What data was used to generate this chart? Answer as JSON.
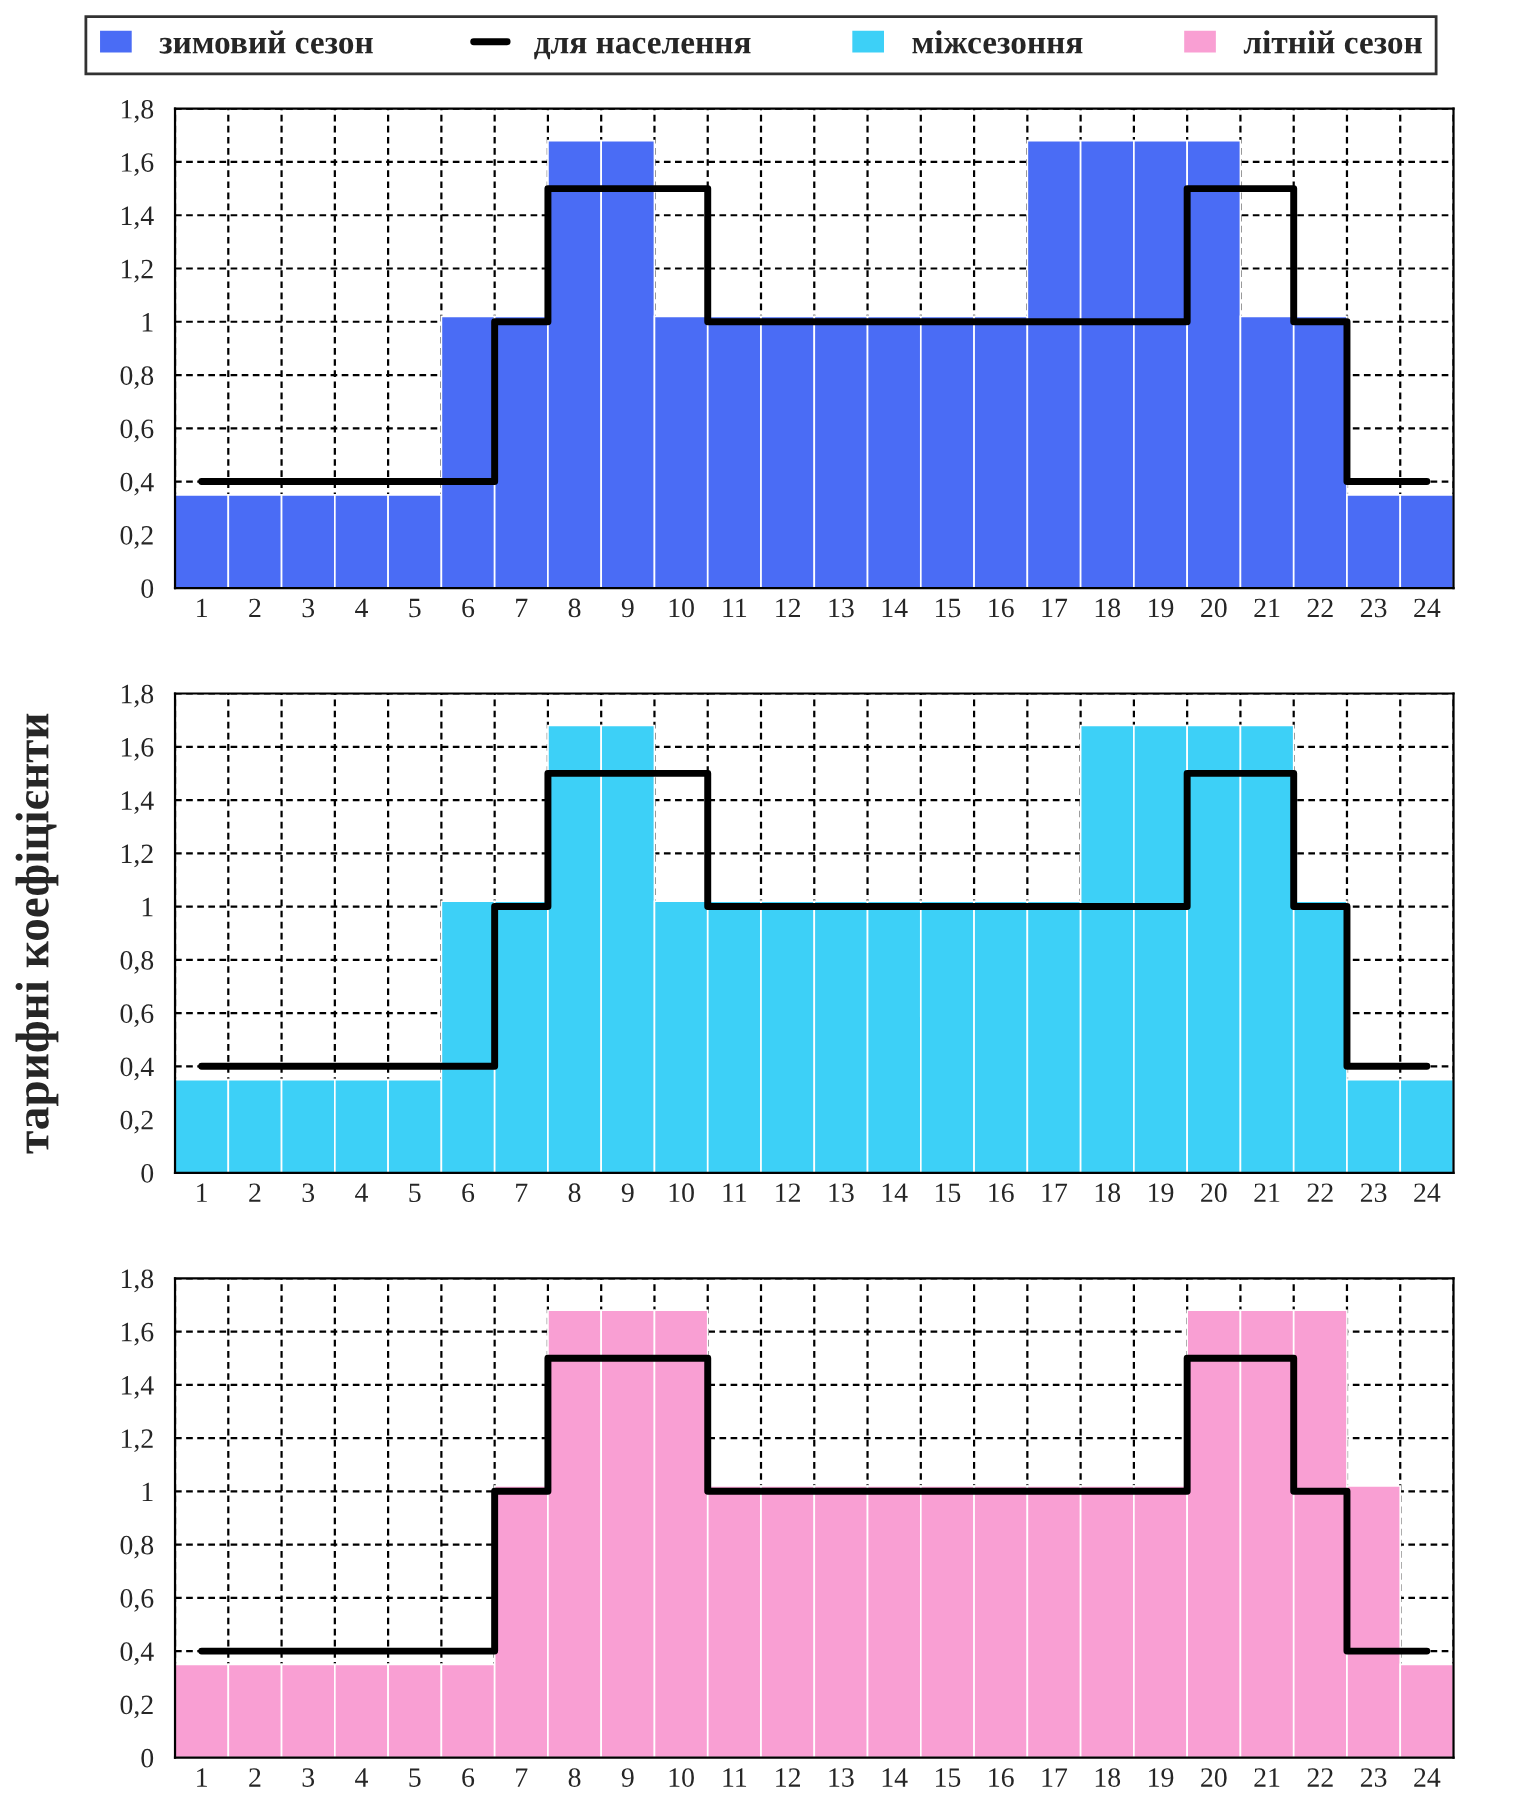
{
  "chart_data": [
    {
      "type": "bar",
      "categories": [
        "1",
        "2",
        "3",
        "4",
        "5",
        "6",
        "7",
        "8",
        "9",
        "10",
        "11",
        "12",
        "13",
        "14",
        "15",
        "16",
        "17",
        "18",
        "19",
        "20",
        "21",
        "22",
        "23",
        "24"
      ],
      "ylim": [
        0,
        1.8
      ],
      "yticks": [
        0,
        {
          "value": 0.2,
          "label": "0,2"
        },
        {
          "value": 0.4,
          "label": "0,4"
        },
        {
          "value": 0.6,
          "label": "0,6"
        },
        {
          "value": 0.8,
          "label": "0,8"
        },
        1,
        {
          "value": 1.2,
          "label": "1,2"
        },
        {
          "value": 1.4,
          "label": "1,4"
        },
        {
          "value": 1.6,
          "label": "1,6"
        },
        {
          "value": 1.8,
          "label": "1,8"
        }
      ],
      "grid": true,
      "legend": "top",
      "series": [
        {
          "type": "bar",
          "name": "зимовий сезон",
          "color": "#4a6cf5",
          "values": [
            0.35,
            0.35,
            0.35,
            0.35,
            0.35,
            1.02,
            1.02,
            1.68,
            1.68,
            1.02,
            1.02,
            1.02,
            1.02,
            1.02,
            1.02,
            1.02,
            1.68,
            1.68,
            1.68,
            1.68,
            1.02,
            1.02,
            0.35,
            0.35
          ]
        },
        {
          "type": "step",
          "name": "для населення",
          "color": "#000000",
          "values": [
            0.4,
            0.4,
            0.4,
            0.4,
            0.4,
            0.4,
            1.0,
            1.5,
            1.5,
            1.5,
            1.0,
            1.0,
            1.0,
            1.0,
            1.0,
            1.0,
            1.0,
            1.0,
            1.0,
            1.5,
            1.5,
            1.0,
            0.4,
            0.4
          ]
        }
      ]
    },
    {
      "type": "bar",
      "categories": [
        "1",
        "2",
        "3",
        "4",
        "5",
        "6",
        "7",
        "8",
        "9",
        "10",
        "11",
        "12",
        "13",
        "14",
        "15",
        "16",
        "17",
        "18",
        "19",
        "20",
        "21",
        "22",
        "23",
        "24"
      ],
      "ylim": [
        0,
        1.8
      ],
      "yticks": [
        0,
        {
          "value": 0.2,
          "label": "0,2"
        },
        {
          "value": 0.4,
          "label": "0,4"
        },
        {
          "value": 0.6,
          "label": "0,6"
        },
        {
          "value": 0.8,
          "label": "0,8"
        },
        1,
        {
          "value": 1.2,
          "label": "1,2"
        },
        {
          "value": 1.4,
          "label": "1,4"
        },
        {
          "value": 1.6,
          "label": "1,6"
        },
        {
          "value": 1.8,
          "label": "1,8"
        }
      ],
      "grid": true,
      "ylabel": "тарифні коефіцієнти",
      "series": [
        {
          "type": "bar",
          "name": "міжсезоння",
          "color": "#3dd0f7",
          "values": [
            0.35,
            0.35,
            0.35,
            0.35,
            0.35,
            1.02,
            1.02,
            1.68,
            1.68,
            1.02,
            1.02,
            1.02,
            1.02,
            1.02,
            1.02,
            1.02,
            1.02,
            1.68,
            1.68,
            1.68,
            1.68,
            1.02,
            0.35,
            0.35
          ]
        },
        {
          "type": "step",
          "color": "#000000",
          "values": [
            0.4,
            0.4,
            0.4,
            0.4,
            0.4,
            0.4,
            1.0,
            1.5,
            1.5,
            1.5,
            1.0,
            1.0,
            1.0,
            1.0,
            1.0,
            1.0,
            1.0,
            1.0,
            1.0,
            1.5,
            1.5,
            1.0,
            0.4,
            0.4
          ]
        }
      ]
    },
    {
      "type": "bar",
      "categories": [
        "1",
        "2",
        "3",
        "4",
        "5",
        "6",
        "7",
        "8",
        "9",
        "10",
        "11",
        "12",
        "13",
        "14",
        "15",
        "16",
        "17",
        "18",
        "19",
        "20",
        "21",
        "22",
        "23",
        "24"
      ],
      "ylim": [
        0,
        1.8
      ],
      "yticks": [
        0,
        {
          "value": 0.2,
          "label": "0,2"
        },
        {
          "value": 0.4,
          "label": "0,4"
        },
        {
          "value": 0.6,
          "label": "0,6"
        },
        {
          "value": 0.8,
          "label": "0,8"
        },
        1,
        {
          "value": 1.2,
          "label": "1,2"
        },
        {
          "value": 1.4,
          "label": "1,4"
        },
        {
          "value": 1.6,
          "label": "1,6"
        },
        {
          "value": 1.8,
          "label": "1,8"
        }
      ],
      "grid": true,
      "series": [
        {
          "type": "bar",
          "name": "літній сезон",
          "color": "#f99fd3",
          "values": [
            0.35,
            0.35,
            0.35,
            0.35,
            0.35,
            0.35,
            1.02,
            1.68,
            1.68,
            1.68,
            1.02,
            1.02,
            1.02,
            1.02,
            1.02,
            1.02,
            1.02,
            1.02,
            1.02,
            1.68,
            1.68,
            1.68,
            1.02,
            0.35
          ]
        },
        {
          "type": "step",
          "color": "#000000",
          "values": [
            0.4,
            0.4,
            0.4,
            0.4,
            0.4,
            0.4,
            1.0,
            1.5,
            1.5,
            1.5,
            1.0,
            1.0,
            1.0,
            1.0,
            1.0,
            1.0,
            1.0,
            1.0,
            1.0,
            1.5,
            1.5,
            1.0,
            0.4,
            0.4
          ]
        }
      ]
    }
  ]
}
